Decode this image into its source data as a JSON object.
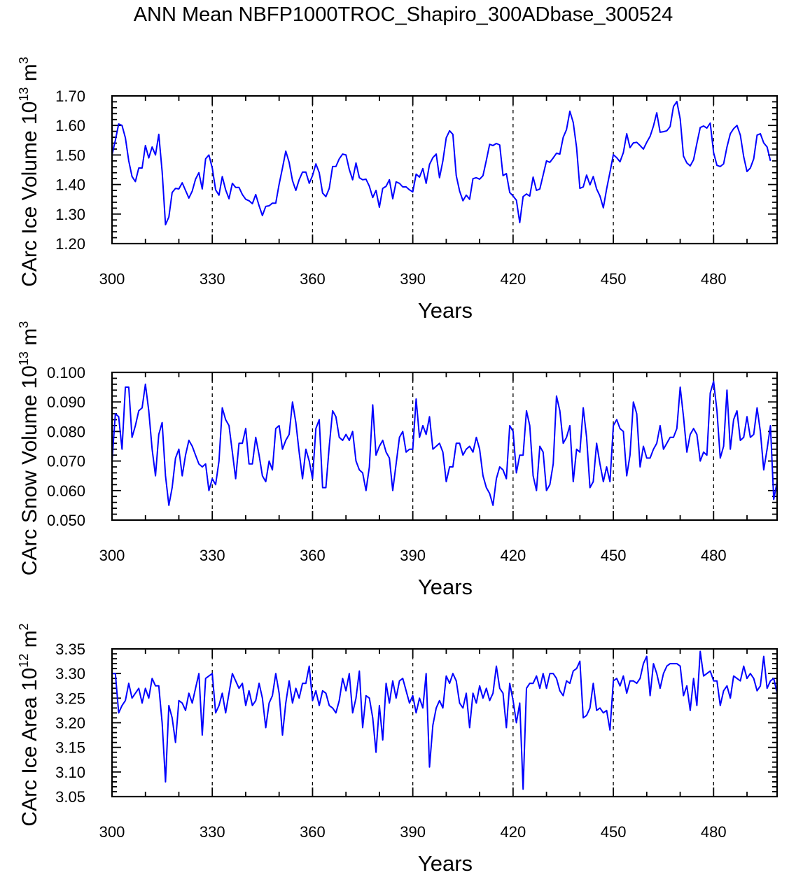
{
  "title": "ANN Mean NBFP1000TROC_Shapiro_300ADbase_300524",
  "line_color": "#0000ff",
  "chart_data": [
    {
      "type": "line",
      "xlabel": "Years",
      "ylabel": "CArc Ice Volume 10",
      "ylabel_exp": "13",
      "ylabel_unit": " m",
      "ylabel_unit_exp": "3",
      "xlim": [
        300,
        499
      ],
      "ylim": [
        1.2,
        1.7
      ],
      "x_start": 300,
      "xticks": [
        "300",
        "330",
        "360",
        "390",
        "420",
        "450",
        "480"
      ],
      "yticks": [
        "1.20",
        "1.30",
        "1.40",
        "1.50",
        "1.60",
        "1.70"
      ],
      "y_minor_step": 0.02,
      "grid": "dashed vertical lines at 330-480",
      "values": [
        1.5,
        1.55,
        1.605,
        1.6,
        1.558,
        1.48,
        1.427,
        1.41,
        1.456,
        1.456,
        1.532,
        1.49,
        1.527,
        1.5,
        1.57,
        1.444,
        1.264,
        1.29,
        1.373,
        1.387,
        1.385,
        1.406,
        1.38,
        1.354,
        1.378,
        1.418,
        1.44,
        1.385,
        1.487,
        1.5,
        1.456,
        1.382,
        1.364,
        1.427,
        1.382,
        1.352,
        1.404,
        1.39,
        1.39,
        1.366,
        1.35,
        1.345,
        1.335,
        1.366,
        1.328,
        1.295,
        1.326,
        1.328,
        1.337,
        1.337,
        1.401,
        1.456,
        1.513,
        1.475,
        1.413,
        1.38,
        1.416,
        1.442,
        1.442,
        1.404,
        1.43,
        1.47,
        1.44,
        1.371,
        1.359,
        1.387,
        1.461,
        1.461,
        1.487,
        1.503,
        1.5,
        1.451,
        1.416,
        1.473,
        1.423,
        1.416,
        1.418,
        1.394,
        1.356,
        1.38,
        1.323,
        1.387,
        1.394,
        1.416,
        1.352,
        1.409,
        1.404,
        1.392,
        1.392,
        1.382,
        1.375,
        1.435,
        1.425,
        1.454,
        1.404,
        1.468,
        1.491,
        1.503,
        1.423,
        1.48,
        1.558,
        1.582,
        1.57,
        1.43,
        1.378,
        1.345,
        1.364,
        1.35,
        1.42,
        1.423,
        1.418,
        1.43,
        1.482,
        1.536,
        1.532,
        1.539,
        1.534,
        1.43,
        1.437,
        1.373,
        1.361,
        1.347,
        1.271,
        1.359,
        1.368,
        1.361,
        1.425,
        1.38,
        1.385,
        1.432,
        1.48,
        1.475,
        1.49,
        1.506,
        1.503,
        1.56,
        1.586,
        1.648,
        1.61,
        1.525,
        1.387,
        1.392,
        1.432,
        1.399,
        1.427,
        1.385,
        1.361,
        1.321,
        1.385,
        1.442,
        1.501,
        1.491,
        1.477,
        1.508,
        1.572,
        1.525,
        1.541,
        1.543,
        1.532,
        1.52,
        1.543,
        1.563,
        1.598,
        1.643,
        1.577,
        1.579,
        1.582,
        1.596,
        1.664,
        1.681,
        1.622,
        1.496,
        1.473,
        1.463,
        1.484,
        1.539,
        1.593,
        1.598,
        1.591,
        1.608,
        1.508,
        1.465,
        1.461,
        1.47,
        1.527,
        1.572,
        1.589,
        1.6,
        1.567,
        1.494,
        1.444,
        1.456,
        1.487,
        1.567,
        1.572,
        1.541,
        1.527,
        1.48
      ]
    },
    {
      "type": "line",
      "xlabel": "Years",
      "ylabel": "CArc Snow Volume 10",
      "ylabel_exp": "13",
      "ylabel_unit": " m",
      "ylabel_unit_exp": "3",
      "xlim": [
        300,
        499
      ],
      "ylim": [
        0.05,
        0.1
      ],
      "x_start": 300,
      "xticks": [
        "300",
        "330",
        "360",
        "390",
        "420",
        "450",
        "480"
      ],
      "yticks": [
        "0.050",
        "0.060",
        "0.070",
        "0.080",
        "0.090",
        "0.100"
      ],
      "y_minor_step": 0.002,
      "grid": "dashed vertical lines at 330-480",
      "values": [
        0.07,
        0.086,
        0.085,
        0.074,
        0.095,
        0.095,
        0.078,
        0.082,
        0.087,
        0.088,
        0.096,
        0.087,
        0.074,
        0.065,
        0.079,
        0.083,
        0.065,
        0.055,
        0.061,
        0.071,
        0.074,
        0.065,
        0.072,
        0.077,
        0.075,
        0.072,
        0.069,
        0.068,
        0.069,
        0.06,
        0.064,
        0.062,
        0.07,
        0.088,
        0.084,
        0.082,
        0.073,
        0.064,
        0.076,
        0.076,
        0.081,
        0.069,
        0.069,
        0.078,
        0.072,
        0.065,
        0.063,
        0.07,
        0.067,
        0.081,
        0.082,
        0.074,
        0.077,
        0.079,
        0.09,
        0.083,
        0.073,
        0.064,
        0.074,
        0.07,
        0.064,
        0.081,
        0.084,
        0.061,
        0.061,
        0.075,
        0.087,
        0.085,
        0.078,
        0.077,
        0.079,
        0.077,
        0.08,
        0.07,
        0.067,
        0.066,
        0.06,
        0.068,
        0.089,
        0.072,
        0.075,
        0.077,
        0.073,
        0.071,
        0.06,
        0.069,
        0.078,
        0.08,
        0.073,
        0.074,
        0.074,
        0.091,
        0.078,
        0.082,
        0.079,
        0.085,
        0.074,
        0.075,
        0.076,
        0.073,
        0.063,
        0.068,
        0.068,
        0.076,
        0.076,
        0.072,
        0.074,
        0.075,
        0.073,
        0.078,
        0.074,
        0.065,
        0.061,
        0.059,
        0.055,
        0.064,
        0.068,
        0.067,
        0.064,
        0.082,
        0.08,
        0.066,
        0.072,
        0.072,
        0.087,
        0.082,
        0.065,
        0.06,
        0.075,
        0.073,
        0.06,
        0.062,
        0.069,
        0.092,
        0.087,
        0.076,
        0.078,
        0.082,
        0.063,
        0.074,
        0.073,
        0.088,
        0.078,
        0.061,
        0.063,
        0.076,
        0.069,
        0.063,
        0.068,
        0.063,
        0.082,
        0.084,
        0.081,
        0.08,
        0.065,
        0.072,
        0.09,
        0.086,
        0.068,
        0.075,
        0.071,
        0.071,
        0.074,
        0.076,
        0.082,
        0.074,
        0.076,
        0.078,
        0.078,
        0.081,
        0.095,
        0.085,
        0.073,
        0.079,
        0.081,
        0.079,
        0.07,
        0.073,
        0.072,
        0.093,
        0.097,
        0.087,
        0.071,
        0.075,
        0.094,
        0.074,
        0.084,
        0.087,
        0.077,
        0.078,
        0.085,
        0.078,
        0.079,
        0.088,
        0.08,
        0.067,
        0.074,
        0.082,
        0.057,
        0.063
      ]
    },
    {
      "type": "line",
      "xlabel": "Years",
      "ylabel": "CArc Ice Area 10",
      "ylabel_exp": "12",
      "ylabel_unit": " m",
      "ylabel_unit_exp": "2",
      "xlim": [
        300,
        499
      ],
      "ylim": [
        3.05,
        3.35
      ],
      "x_start": 300,
      "xticks": [
        "300",
        "330",
        "360",
        "390",
        "420",
        "450",
        "480"
      ],
      "yticks": [
        "3.05",
        "3.10",
        "3.15",
        "3.20",
        "3.25",
        "3.30",
        "3.35"
      ],
      "y_minor_step": 0.01,
      "grid": "dashed vertical lines at 330-480",
      "values": [
        3.3,
        3.3,
        3.22,
        3.235,
        3.245,
        3.28,
        3.25,
        3.26,
        3.27,
        3.24,
        3.27,
        3.25,
        3.29,
        3.275,
        3.275,
        3.2,
        3.08,
        3.235,
        3.21,
        3.16,
        3.245,
        3.24,
        3.225,
        3.26,
        3.24,
        3.27,
        3.3,
        3.175,
        3.29,
        3.295,
        3.3,
        3.22,
        3.235,
        3.26,
        3.22,
        3.26,
        3.3,
        3.285,
        3.27,
        3.28,
        3.235,
        3.265,
        3.235,
        3.245,
        3.28,
        3.25,
        3.19,
        3.24,
        3.255,
        3.3,
        3.26,
        3.175,
        3.24,
        3.285,
        3.24,
        3.27,
        3.25,
        3.28,
        3.28,
        3.315,
        3.245,
        3.265,
        3.235,
        3.265,
        3.26,
        3.235,
        3.23,
        3.22,
        3.245,
        3.29,
        3.265,
        3.3,
        3.22,
        3.25,
        3.305,
        3.19,
        3.255,
        3.25,
        3.21,
        3.14,
        3.235,
        3.165,
        3.28,
        3.24,
        3.285,
        3.25,
        3.285,
        3.29,
        3.265,
        3.24,
        3.255,
        3.22,
        3.25,
        3.23,
        3.3,
        3.11,
        3.195,
        3.23,
        3.245,
        3.23,
        3.295,
        3.28,
        3.3,
        3.285,
        3.24,
        3.23,
        3.26,
        3.19,
        3.26,
        3.24,
        3.275,
        3.25,
        3.27,
        3.245,
        3.26,
        3.315,
        3.27,
        3.26,
        3.19,
        3.28,
        3.245,
        3.2,
        3.24,
        3.065,
        3.27,
        3.28,
        3.28,
        3.295,
        3.27,
        3.3,
        3.27,
        3.3,
        3.3,
        3.29,
        3.265,
        3.255,
        3.285,
        3.28,
        3.305,
        3.31,
        3.325,
        3.21,
        3.215,
        3.23,
        3.28,
        3.225,
        3.23,
        3.22,
        3.225,
        3.185,
        3.285,
        3.29,
        3.275,
        3.295,
        3.26,
        3.285,
        3.285,
        3.28,
        3.29,
        3.32,
        3.335,
        3.255,
        3.32,
        3.3,
        3.27,
        3.3,
        3.315,
        3.32,
        3.32,
        3.32,
        3.315,
        3.255,
        3.275,
        3.225,
        3.29,
        3.235,
        3.345,
        3.295,
        3.3,
        3.305,
        3.285,
        3.285,
        3.235,
        3.265,
        3.275,
        3.25,
        3.295,
        3.29,
        3.285,
        3.315,
        3.29,
        3.3,
        3.29,
        3.265,
        3.275,
        3.335,
        3.27,
        3.285,
        3.29,
        3.26
      ]
    }
  ]
}
